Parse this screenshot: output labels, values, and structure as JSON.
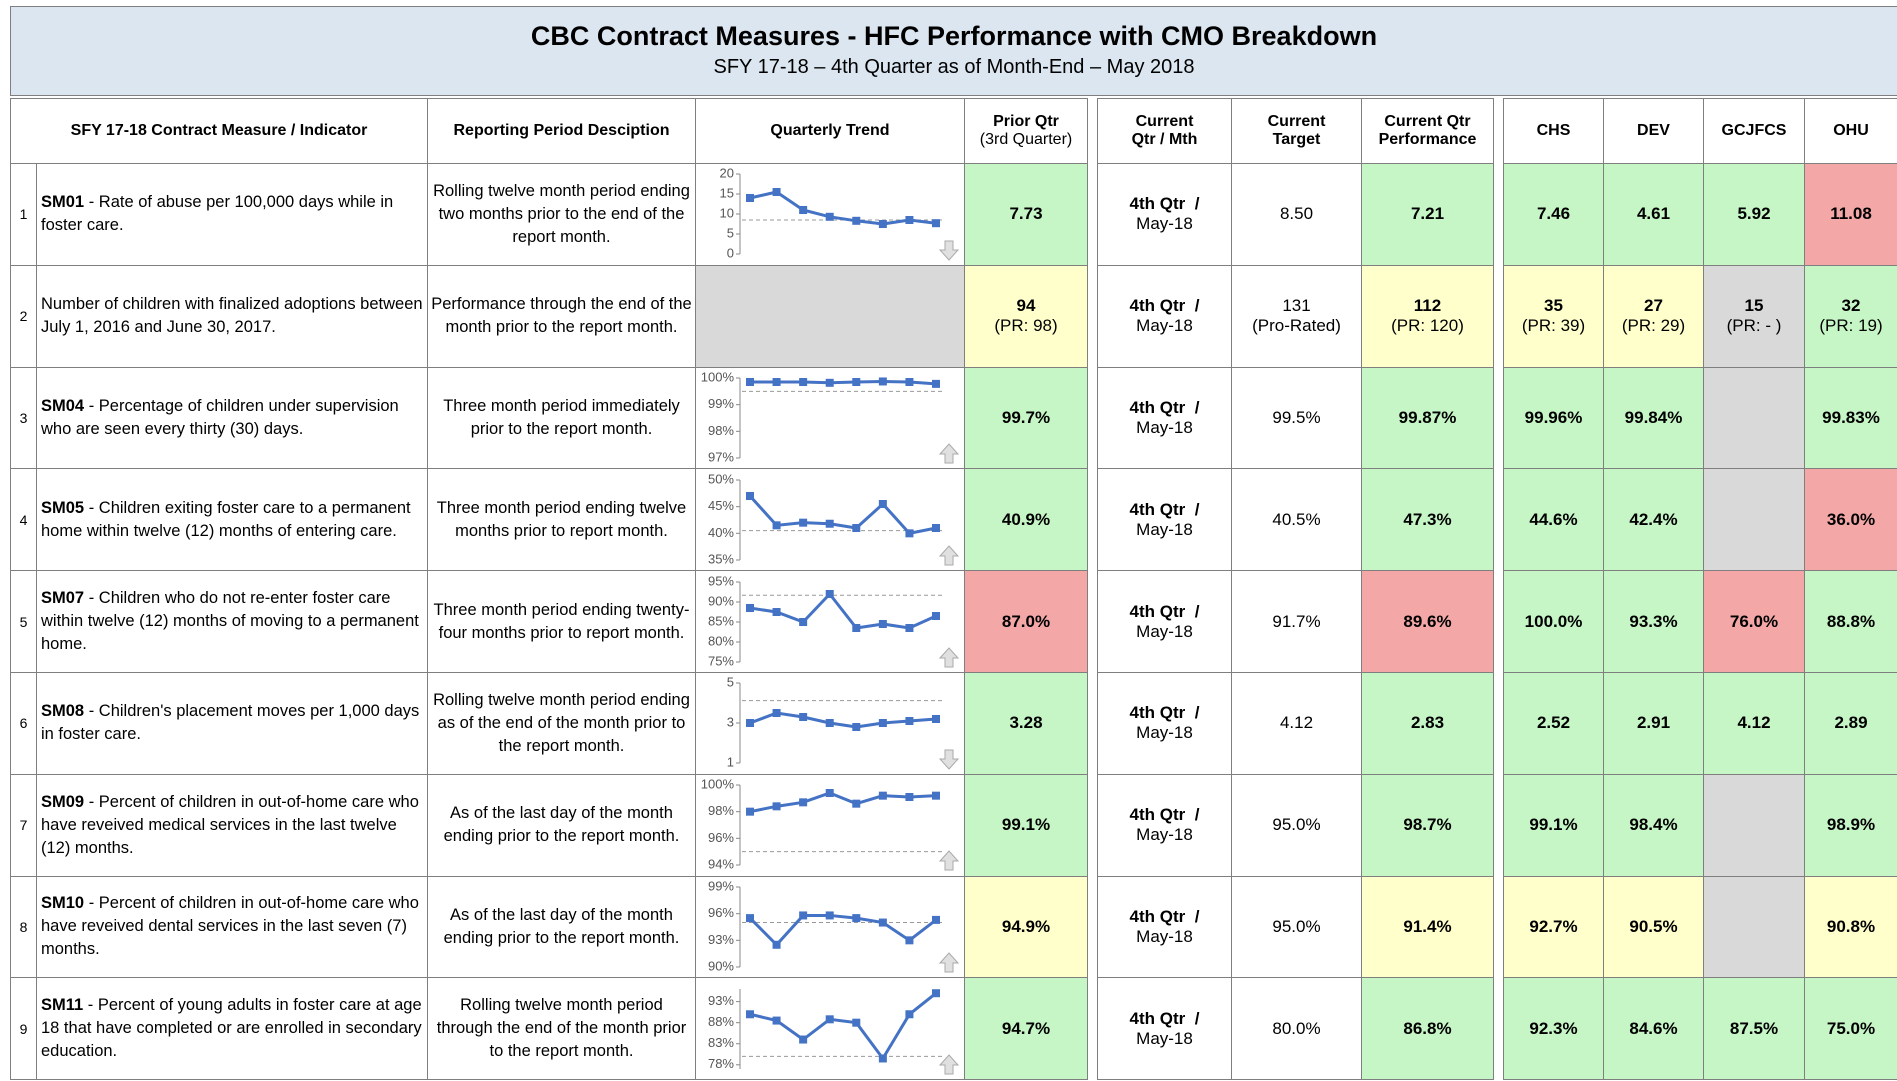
{
  "header": {
    "title": "CBC Contract Measures - HFC Performance with CMO Breakdown",
    "subtitle": "SFY 17-18 – 4th Quarter as of Month-End – May 2018"
  },
  "trend_color": "#4472c4",
  "columns": [
    [
      "SFY 17-18 Contract Measure / Indicator"
    ],
    [
      "Reporting Period Desciption"
    ],
    [
      "Quarterly Trend"
    ],
    [
      "Prior Qtr",
      "(3rd Quarter)"
    ],
    [
      "Current",
      "Qtr / Mth"
    ],
    [
      "Current",
      "Target"
    ],
    [
      "Current Qtr",
      "Performance"
    ],
    [
      "CHS"
    ],
    [
      "DEV"
    ],
    [
      "GCJFCS"
    ],
    [
      "OHU"
    ]
  ],
  "rows": [
    {
      "num": "1",
      "code": "SM01",
      "text": "- Rate of abuse per 100,000 days while in foster care.",
      "period": "Rolling twelve month period ending two months prior to the end of the report month.",
      "trend": {
        "ylim": [
          0,
          20
        ],
        "yticks": [
          20,
          15,
          10,
          5,
          0
        ],
        "target": 8.5,
        "values": [
          14,
          15.5,
          11,
          9.3,
          8.3,
          7.5,
          8.5,
          7.7
        ],
        "arrow": "down"
      },
      "prior": {
        "text": "7.73",
        "color": "#c6f5c6"
      },
      "qtr": [
        "4th Qtr  /",
        "May-18"
      ],
      "target": {
        "text": "8.50"
      },
      "current": {
        "text": "7.21",
        "color": "#c6f5c6"
      },
      "cmo": [
        {
          "text": "7.46",
          "color": "#c6f5c6"
        },
        {
          "text": "4.61",
          "color": "#c6f5c6"
        },
        {
          "text": "5.92",
          "color": "#c6f5c6"
        },
        {
          "text": "11.08",
          "color": "#f4a7a7"
        }
      ]
    },
    {
      "num": "2",
      "text": "Number of children with finalized adoptions between July 1, 2016 and June 30, 2017.",
      "period": "Performance through the end of the month prior to the report month.",
      "trend": null,
      "prior": {
        "text": "94",
        "sub": "(PR: 98)",
        "color": "#ffffcc"
      },
      "qtr": [
        "4th Qtr  /",
        "May-18"
      ],
      "target": {
        "text": "131",
        "sub": "(Pro-Rated)"
      },
      "current": {
        "text": "112",
        "sub": "(PR: 120)",
        "color": "#ffffcc"
      },
      "cmo": [
        {
          "text": "35",
          "sub": "(PR: 39)",
          "color": "#ffffcc"
        },
        {
          "text": "27",
          "sub": "(PR: 29)",
          "color": "#ffffcc"
        },
        {
          "text": "15",
          "sub": "(PR: - )",
          "color": "#d9d9d9"
        },
        {
          "text": "32",
          "sub": "(PR: 19)",
          "color": "#c6f5c6"
        }
      ]
    },
    {
      "num": "3",
      "code": "SM04",
      "text": "- Percentage of children under supervision who are seen every thirty (30) days.",
      "period": "Three month period immediately prior to the report month.",
      "trend": {
        "ylim": [
          97,
          100
        ],
        "yticks": [
          {
            "value": 100,
            "label": "100%"
          },
          {
            "value": 99,
            "label": "99%"
          },
          {
            "value": 98,
            "label": "98%"
          },
          {
            "value": 97,
            "label": "97%"
          }
        ],
        "target": 99.5,
        "values": [
          99.85,
          99.85,
          99.85,
          99.82,
          99.85,
          99.87,
          99.85,
          99.78
        ],
        "arrow": "up"
      },
      "prior": {
        "text": "99.7%",
        "color": "#c6f5c6"
      },
      "qtr": [
        "4th Qtr  /",
        "May-18"
      ],
      "target": {
        "text": "99.5%"
      },
      "current": {
        "text": "99.87%",
        "color": "#c6f5c6"
      },
      "cmo": [
        {
          "text": "99.96%",
          "color": "#c6f5c6"
        },
        {
          "text": "99.84%",
          "color": "#c6f5c6"
        },
        {
          "color": "#d9d9d9"
        },
        {
          "text": "99.83%",
          "color": "#c6f5c6"
        }
      ]
    },
    {
      "num": "4",
      "code": "SM05",
      "text": "- Children exiting foster care to a permanent home within twelve (12) months of entering care.",
      "period": "Three month period ending twelve months prior to report month.",
      "trend": {
        "ylim": [
          35,
          50
        ],
        "yticks": [
          {
            "value": 50,
            "label": "50%"
          },
          {
            "value": 45,
            "label": "45%"
          },
          {
            "value": 40,
            "label": "40%"
          },
          {
            "value": 35,
            "label": "35%"
          }
        ],
        "target": 40.5,
        "values": [
          47,
          41.5,
          42,
          41.8,
          41,
          45.5,
          40,
          41
        ],
        "arrow": "up"
      },
      "prior": {
        "text": "40.9%",
        "color": "#c6f5c6"
      },
      "qtr": [
        "4th Qtr  /",
        "May-18"
      ],
      "target": {
        "text": "40.5%"
      },
      "current": {
        "text": "47.3%",
        "color": "#c6f5c6"
      },
      "cmo": [
        {
          "text": "44.6%",
          "color": "#c6f5c6"
        },
        {
          "text": "42.4%",
          "color": "#c6f5c6"
        },
        {
          "color": "#d9d9d9"
        },
        {
          "text": "36.0%",
          "color": "#f4a7a7"
        }
      ]
    },
    {
      "num": "5",
      "code": "SM07",
      "text": "- Children who do not re-enter foster care within twelve (12) months of moving to a permanent home.",
      "period": "Three month period ending twenty-four months prior to report month.",
      "trend": {
        "ylim": [
          75,
          95
        ],
        "yticks": [
          {
            "value": 95,
            "label": "95%"
          },
          {
            "value": 90,
            "label": "90%"
          },
          {
            "value": 85,
            "label": "85%"
          },
          {
            "value": 80,
            "label": "80%"
          },
          {
            "value": 75,
            "label": "75%"
          }
        ],
        "target": 91.7,
        "values": [
          88.5,
          87.5,
          85,
          92,
          83.5,
          84.5,
          83.5,
          86.5
        ],
        "arrow": "up"
      },
      "prior": {
        "text": "87.0%",
        "color": "#f4a7a7"
      },
      "qtr": [
        "4th Qtr  /",
        "May-18"
      ],
      "target": {
        "text": "91.7%"
      },
      "current": {
        "text": "89.6%",
        "color": "#f4a7a7"
      },
      "cmo": [
        {
          "text": "100.0%",
          "color": "#c6f5c6"
        },
        {
          "text": "93.3%",
          "color": "#c6f5c6"
        },
        {
          "text": "76.0%",
          "color": "#f4a7a7"
        },
        {
          "text": "88.8%",
          "color": "#c6f5c6"
        }
      ]
    },
    {
      "num": "6",
      "code": "SM08",
      "text": "- Children's placement moves per 1,000 days in foster care.",
      "period": "Rolling twelve month period ending as of the end of the month prior to the report month.",
      "trend": {
        "ylim": [
          1,
          5
        ],
        "yticks": [
          5,
          3,
          1
        ],
        "target": 4.12,
        "values": [
          3,
          3.5,
          3.3,
          3,
          2.8,
          3,
          3.1,
          3.2
        ],
        "arrow": "down"
      },
      "prior": {
        "text": "3.28",
        "color": "#c6f5c6"
      },
      "qtr": [
        "4th Qtr  /",
        "May-18"
      ],
      "target": {
        "text": "4.12"
      },
      "current": {
        "text": "2.83",
        "color": "#c6f5c6"
      },
      "cmo": [
        {
          "text": "2.52",
          "color": "#c6f5c6"
        },
        {
          "text": "2.91",
          "color": "#c6f5c6"
        },
        {
          "text": "4.12",
          "color": "#c6f5c6"
        },
        {
          "text": "2.89",
          "color": "#c6f5c6"
        }
      ]
    },
    {
      "num": "7",
      "code": "SM09",
      "text": "- Percent of children in out-of-home care who have reveived medical services in the last twelve (12) months.",
      "period": "As of the last day of the month ending prior to the report month.",
      "trend": {
        "ylim": [
          94,
          100
        ],
        "yticks": [
          {
            "value": 100,
            "label": "100%"
          },
          {
            "value": 98,
            "label": "98%"
          },
          {
            "value": 96,
            "label": "96%"
          },
          {
            "value": 94,
            "label": "94%"
          }
        ],
        "target": 95,
        "values": [
          98,
          98.4,
          98.7,
          99.4,
          98.6,
          99.2,
          99.1,
          99.2
        ],
        "arrow": "up"
      },
      "prior": {
        "text": "99.1%",
        "color": "#c6f5c6"
      },
      "qtr": [
        "4th Qtr  /",
        "May-18"
      ],
      "target": {
        "text": "95.0%"
      },
      "current": {
        "text": "98.7%",
        "color": "#c6f5c6"
      },
      "cmo": [
        {
          "text": "99.1%",
          "color": "#c6f5c6"
        },
        {
          "text": "98.4%",
          "color": "#c6f5c6"
        },
        {
          "color": "#d9d9d9"
        },
        {
          "text": "98.9%",
          "color": "#c6f5c6"
        }
      ]
    },
    {
      "num": "8",
      "code": "SM10",
      "text": "- Percent of children in out-of-home care who have reveived dental services in the last seven (7) months.",
      "period": "As of the last day of the month ending prior to the report month.",
      "trend": {
        "ylim": [
          90,
          99
        ],
        "yticks": [
          {
            "value": 99,
            "label": "99%"
          },
          {
            "value": 96,
            "label": "96%"
          },
          {
            "value": 93,
            "label": "93%"
          },
          {
            "value": 90,
            "label": "90%"
          }
        ],
        "target": 95,
        "values": [
          95.5,
          92.5,
          95.8,
          95.8,
          95.5,
          95,
          93,
          95.3
        ],
        "arrow": "up"
      },
      "prior": {
        "text": "94.9%",
        "color": "#ffffcc"
      },
      "qtr": [
        "4th Qtr  /",
        "May-18"
      ],
      "target": {
        "text": "95.0%"
      },
      "current": {
        "text": "91.4%",
        "color": "#ffffcc"
      },
      "cmo": [
        {
          "text": "92.7%",
          "color": "#ffffcc"
        },
        {
          "text": "90.5%",
          "color": "#ffffcc"
        },
        {
          "color": "#d9d9d9"
        },
        {
          "text": "90.8%",
          "color": "#ffffcc"
        }
      ]
    },
    {
      "num": "9",
      "code": "SM11",
      "text": "- Percent of young adults in foster care at age 18 that have completed or are enrolled in secondary education.",
      "period": "Rolling twelve month period through the end of the month prior to the report month.",
      "trend": {
        "ylim": [
          77,
          96
        ],
        "yticks": [
          {
            "value": 93,
            "label": "93%"
          },
          {
            "value": 88,
            "label": "88%"
          },
          {
            "value": 83,
            "label": "83%"
          },
          {
            "value": 78,
            "label": "78%"
          }
        ],
        "target": 80,
        "values": [
          90,
          88.5,
          84,
          88.8,
          88,
          79.5,
          90,
          95
        ],
        "arrow": "up"
      },
      "prior": {
        "text": "94.7%",
        "color": "#c6f5c6"
      },
      "qtr": [
        "4th Qtr  /",
        "May-18"
      ],
      "target": {
        "text": "80.0%"
      },
      "current": {
        "text": "86.8%",
        "color": "#c6f5c6"
      },
      "cmo": [
        {
          "text": "92.3%",
          "color": "#c6f5c6"
        },
        {
          "text": "84.6%",
          "color": "#c6f5c6"
        },
        {
          "text": "87.5%",
          "color": "#c6f5c6"
        },
        {
          "text": "75.0%",
          "color": "#c6f5c6"
        }
      ]
    }
  ]
}
